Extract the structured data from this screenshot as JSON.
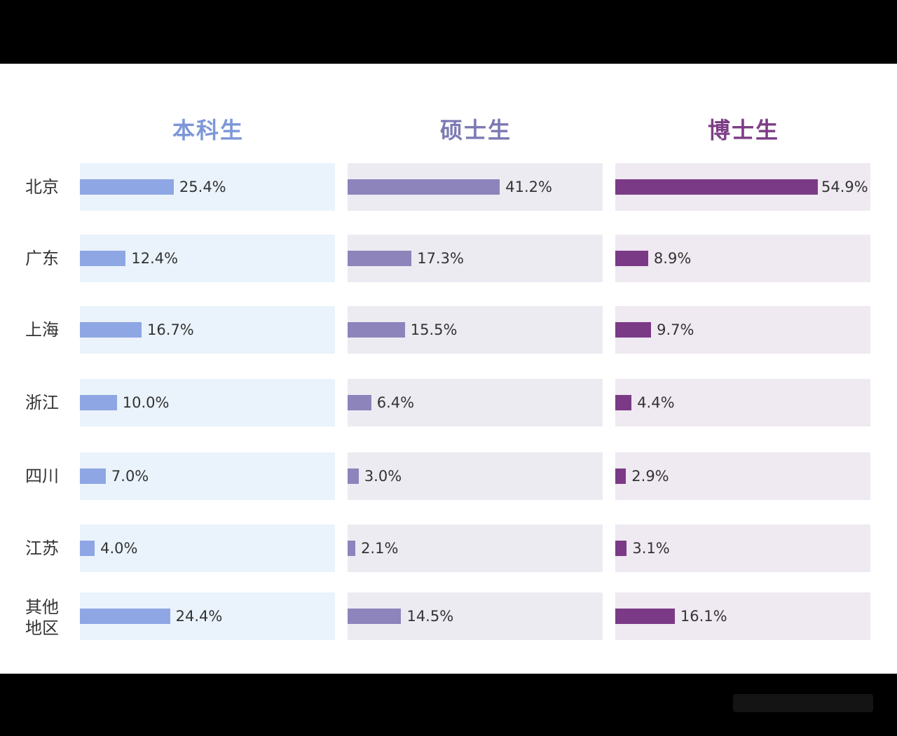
{
  "chart_data": {
    "type": "bar",
    "orientation": "horizontal",
    "categories": [
      "北京",
      "广东",
      "上海",
      "浙江",
      "四川",
      "江苏",
      "其他地区"
    ],
    "category_lines": [
      [
        "北京"
      ],
      [
        "广东"
      ],
      [
        "上海"
      ],
      [
        "浙江"
      ],
      [
        "四川"
      ],
      [
        "江苏"
      ],
      [
        "其他",
        "地区"
      ]
    ],
    "series": [
      {
        "name": "本科生",
        "values": [
          25.4,
          12.4,
          16.7,
          10.0,
          7.0,
          4.0,
          24.4
        ],
        "labels": [
          "25.4%",
          "12.4%",
          "16.7%",
          "10.0%",
          "7.0%",
          "4.0%",
          "24.4%"
        ],
        "title_color": "#7d97d8",
        "bar_color": "#8ea6e3",
        "cell_bg": "#eaf3fb"
      },
      {
        "name": "硕士生",
        "values": [
          41.2,
          17.3,
          15.5,
          6.4,
          3.0,
          2.1,
          14.5
        ],
        "labels": [
          "41.2%",
          "17.3%",
          "15.5%",
          "6.4%",
          "3.0%",
          "2.1%",
          "14.5%"
        ],
        "title_color": "#7c79b3",
        "bar_color": "#8c84bb",
        "cell_bg": "#ecebf2"
      },
      {
        "name": "博士生",
        "values": [
          54.9,
          8.9,
          9.7,
          4.4,
          2.9,
          3.1,
          16.1
        ],
        "labels": [
          "54.9%",
          "8.9%",
          "9.7%",
          "4.4%",
          "2.9%",
          "3.1%",
          "16.1%"
        ],
        "title_color": "#7d3d86",
        "bar_color": "#7b3a86",
        "cell_bg": "#efe9f1"
      }
    ],
    "xlim": [
      0,
      55
    ],
    "unit": "%",
    "grid": false,
    "legend": "none"
  }
}
